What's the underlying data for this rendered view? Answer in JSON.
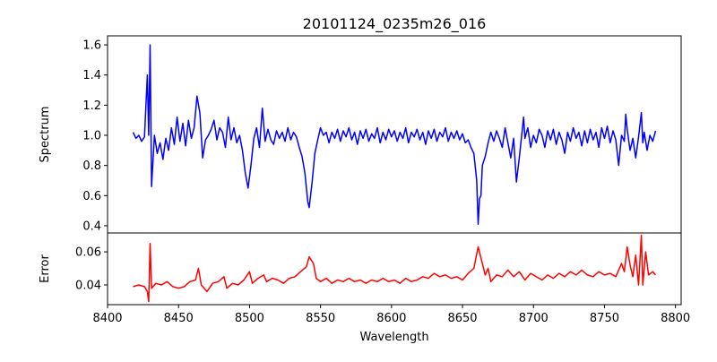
{
  "chart_data": {
    "type": "line",
    "title": "20101124_0235m26_016",
    "xlabel": "Wavelength",
    "xlim": [
      8400,
      8804
    ],
    "xticks": [
      8400,
      8450,
      8500,
      8550,
      8600,
      8650,
      8700,
      8750,
      8800
    ],
    "xtick_labels": [
      "8400",
      "8450",
      "8500",
      "8550",
      "8600",
      "8650",
      "8700",
      "8750",
      "8800"
    ],
    "panels": [
      {
        "name": "spectrum",
        "ylabel": "Spectrum",
        "ylim": [
          0.352,
          1.66
        ],
        "yticks": [
          0.4,
          0.6,
          0.8,
          1.0,
          1.2,
          1.4,
          1.6
        ],
        "ytick_labels": [
          "0.4",
          "0.6",
          "0.8",
          "1.0",
          "1.2",
          "1.4",
          "1.6"
        ],
        "color": "#0000ff",
        "points": [
          [
            8418,
            1.02
          ],
          [
            8420,
            0.98
          ],
          [
            8422,
            1.0
          ],
          [
            8424,
            0.96
          ],
          [
            8426,
            0.99
          ],
          [
            8428,
            1.4
          ],
          [
            8429,
            1.0
          ],
          [
            8430,
            1.6
          ],
          [
            8431,
            0.66
          ],
          [
            8433,
            1.0
          ],
          [
            8435,
            0.88
          ],
          [
            8437,
            0.95
          ],
          [
            8439,
            0.84
          ],
          [
            8441,
            0.98
          ],
          [
            8443,
            0.9
          ],
          [
            8445,
            1.05
          ],
          [
            8447,
            0.94
          ],
          [
            8449,
            1.12
          ],
          [
            8451,
            0.96
          ],
          [
            8453,
            1.08
          ],
          [
            8455,
            0.93
          ],
          [
            8457,
            1.1
          ],
          [
            8459,
            0.98
          ],
          [
            8461,
            1.05
          ],
          [
            8463,
            1.26
          ],
          [
            8465,
            1.15
          ],
          [
            8467,
            0.85
          ],
          [
            8469,
            0.97
          ],
          [
            8471,
            1.0
          ],
          [
            8473,
            1.04
          ],
          [
            8475,
            1.1
          ],
          [
            8477,
            0.97
          ],
          [
            8479,
            1.05
          ],
          [
            8481,
            1.02
          ],
          [
            8483,
            0.92
          ],
          [
            8485,
            1.12
          ],
          [
            8487,
            0.97
          ],
          [
            8489,
            1.05
          ],
          [
            8491,
            0.95
          ],
          [
            8493,
            1.0
          ],
          [
            8495,
            0.9
          ],
          [
            8497,
            0.75
          ],
          [
            8499,
            0.65
          ],
          [
            8501,
            0.8
          ],
          [
            8503,
            0.98
          ],
          [
            8505,
            1.05
          ],
          [
            8507,
            0.92
          ],
          [
            8509,
            1.18
          ],
          [
            8511,
            0.96
          ],
          [
            8513,
            1.04
          ],
          [
            8515,
            0.97
          ],
          [
            8517,
            0.94
          ],
          [
            8519,
            1.03
          ],
          [
            8521,
            0.98
          ],
          [
            8523,
            1.02
          ],
          [
            8525,
            0.96
          ],
          [
            8527,
            1.05
          ],
          [
            8529,
            0.97
          ],
          [
            8531,
            1.02
          ],
          [
            8533,
            0.99
          ],
          [
            8535,
            0.92
          ],
          [
            8537,
            0.86
          ],
          [
            8539,
            0.75
          ],
          [
            8541,
            0.56
          ],
          [
            8542,
            0.52
          ],
          [
            8544,
            0.68
          ],
          [
            8546,
            0.88
          ],
          [
            8548,
            0.97
          ],
          [
            8550,
            1.05
          ],
          [
            8552,
            1.0
          ],
          [
            8554,
            1.02
          ],
          [
            8556,
            0.95
          ],
          [
            8558,
            1.02
          ],
          [
            8560,
            0.98
          ],
          [
            8562,
            1.04
          ],
          [
            8564,
            0.96
          ],
          [
            8566,
            1.03
          ],
          [
            8568,
            0.99
          ],
          [
            8570,
            1.05
          ],
          [
            8572,
            0.97
          ],
          [
            8574,
            1.02
          ],
          [
            8576,
            0.94
          ],
          [
            8578,
            1.03
          ],
          [
            8580,
            0.98
          ],
          [
            8582,
            1.04
          ],
          [
            8584,
            0.96
          ],
          [
            8586,
            1.01
          ],
          [
            8588,
            0.98
          ],
          [
            8590,
            1.05
          ],
          [
            8592,
            0.95
          ],
          [
            8594,
            1.02
          ],
          [
            8596,
            0.97
          ],
          [
            8598,
            1.04
          ],
          [
            8600,
            0.99
          ],
          [
            8602,
            1.03
          ],
          [
            8604,
            0.96
          ],
          [
            8606,
            1.02
          ],
          [
            8608,
            0.98
          ],
          [
            8610,
            1.05
          ],
          [
            8612,
            0.95
          ],
          [
            8614,
            1.02
          ],
          [
            8616,
            0.99
          ],
          [
            8618,
            1.04
          ],
          [
            8620,
            0.97
          ],
          [
            8622,
            1.02
          ],
          [
            8624,
            0.94
          ],
          [
            8626,
            1.03
          ],
          [
            8628,
            0.98
          ],
          [
            8630,
            1.04
          ],
          [
            8632,
            0.96
          ],
          [
            8634,
            1.02
          ],
          [
            8636,
            0.99
          ],
          [
            8638,
            1.05
          ],
          [
            8640,
            0.96
          ],
          [
            8642,
            1.02
          ],
          [
            8644,
            0.98
          ],
          [
            8646,
            1.03
          ],
          [
            8648,
            0.97
          ],
          [
            8650,
            1.01
          ],
          [
            8652,
            0.95
          ],
          [
            8654,
            0.97
          ],
          [
            8656,
            0.92
          ],
          [
            8658,
            0.88
          ],
          [
            8660,
            0.7
          ],
          [
            8661,
            0.41
          ],
          [
            8662,
            0.58
          ],
          [
            8663,
            0.6
          ],
          [
            8664,
            0.8
          ],
          [
            8666,
            0.86
          ],
          [
            8668,
            0.95
          ],
          [
            8670,
            1.02
          ],
          [
            8672,
            0.96
          ],
          [
            8674,
            1.03
          ],
          [
            8676,
            0.98
          ],
          [
            8678,
            0.92
          ],
          [
            8680,
            1.05
          ],
          [
            8682,
            0.95
          ],
          [
            8684,
            0.85
          ],
          [
            8686,
            0.98
          ],
          [
            8688,
            0.69
          ],
          [
            8690,
            0.85
          ],
          [
            8692,
            1.03
          ],
          [
            8693,
            1.12
          ],
          [
            8694,
            0.98
          ],
          [
            8696,
            1.05
          ],
          [
            8698,
            0.92
          ],
          [
            8700,
            1.0
          ],
          [
            8702,
            0.95
          ],
          [
            8704,
            1.04
          ],
          [
            8706,
            1.0
          ],
          [
            8708,
            0.92
          ],
          [
            8710,
            1.03
          ],
          [
            8712,
            0.97
          ],
          [
            8714,
            1.04
          ],
          [
            8716,
            0.94
          ],
          [
            8718,
            1.02
          ],
          [
            8720,
            0.97
          ],
          [
            8722,
            0.88
          ],
          [
            8724,
            1.02
          ],
          [
            8726,
            0.96
          ],
          [
            8728,
            1.05
          ],
          [
            8730,
            0.98
          ],
          [
            8732,
            1.02
          ],
          [
            8734,
            0.93
          ],
          [
            8736,
            1.03
          ],
          [
            8738,
            0.95
          ],
          [
            8740,
            1.04
          ],
          [
            8742,
            0.97
          ],
          [
            8744,
            1.02
          ],
          [
            8746,
            0.92
          ],
          [
            8748,
            1.05
          ],
          [
            8750,
            0.98
          ],
          [
            8752,
            1.06
          ],
          [
            8754,
            0.95
          ],
          [
            8756,
            1.03
          ],
          [
            8758,
            0.97
          ],
          [
            8760,
            0.8
          ],
          [
            8762,
            1.0
          ],
          [
            8764,
            0.96
          ],
          [
            8765,
            1.14
          ],
          [
            8766,
            1.04
          ],
          [
            8768,
            0.9
          ],
          [
            8770,
            0.98
          ],
          [
            8772,
            0.85
          ],
          [
            8774,
            0.99
          ],
          [
            8776,
            1.15
          ],
          [
            8777,
            0.95
          ],
          [
            8778,
            1.02
          ],
          [
            8780,
            0.9
          ],
          [
            8782,
            1.0
          ],
          [
            8784,
            0.96
          ],
          [
            8786,
            1.03
          ]
        ]
      },
      {
        "name": "error",
        "ylabel": "Error",
        "ylim": [
          0.0281,
          0.0714
        ],
        "yticks": [
          0.04,
          0.06
        ],
        "ytick_labels": [
          "0.04",
          "0.06"
        ],
        "color": "#ff0000",
        "points": [
          [
            8418,
            0.039
          ],
          [
            8422,
            0.04
          ],
          [
            8426,
            0.039
          ],
          [
            8428,
            0.036
          ],
          [
            8429,
            0.03
          ],
          [
            8430,
            0.065
          ],
          [
            8431,
            0.038
          ],
          [
            8434,
            0.041
          ],
          [
            8438,
            0.04
          ],
          [
            8442,
            0.042
          ],
          [
            8446,
            0.039
          ],
          [
            8450,
            0.038
          ],
          [
            8454,
            0.039
          ],
          [
            8458,
            0.042
          ],
          [
            8462,
            0.043
          ],
          [
            8464,
            0.05
          ],
          [
            8466,
            0.04
          ],
          [
            8470,
            0.036
          ],
          [
            8474,
            0.041
          ],
          [
            8478,
            0.042
          ],
          [
            8482,
            0.045
          ],
          [
            8484,
            0.038
          ],
          [
            8488,
            0.041
          ],
          [
            8492,
            0.04
          ],
          [
            8496,
            0.043
          ],
          [
            8500,
            0.048
          ],
          [
            8502,
            0.041
          ],
          [
            8506,
            0.044
          ],
          [
            8510,
            0.046
          ],
          [
            8512,
            0.042
          ],
          [
            8516,
            0.044
          ],
          [
            8520,
            0.043
          ],
          [
            8524,
            0.041
          ],
          [
            8528,
            0.044
          ],
          [
            8532,
            0.045
          ],
          [
            8536,
            0.048
          ],
          [
            8540,
            0.051
          ],
          [
            8542,
            0.057
          ],
          [
            8545,
            0.053
          ],
          [
            8547,
            0.044
          ],
          [
            8550,
            0.042
          ],
          [
            8554,
            0.044
          ],
          [
            8558,
            0.041
          ],
          [
            8562,
            0.043
          ],
          [
            8566,
            0.042
          ],
          [
            8570,
            0.044
          ],
          [
            8574,
            0.042
          ],
          [
            8578,
            0.043
          ],
          [
            8582,
            0.041
          ],
          [
            8586,
            0.043
          ],
          [
            8590,
            0.042
          ],
          [
            8594,
            0.044
          ],
          [
            8598,
            0.042
          ],
          [
            8602,
            0.043
          ],
          [
            8606,
            0.041
          ],
          [
            8610,
            0.044
          ],
          [
            8614,
            0.042
          ],
          [
            8618,
            0.043
          ],
          [
            8622,
            0.045
          ],
          [
            8626,
            0.044
          ],
          [
            8630,
            0.047
          ],
          [
            8634,
            0.045
          ],
          [
            8638,
            0.046
          ],
          [
            8642,
            0.044
          ],
          [
            8646,
            0.045
          ],
          [
            8650,
            0.043
          ],
          [
            8654,
            0.047
          ],
          [
            8658,
            0.05
          ],
          [
            8661,
            0.063
          ],
          [
            8664,
            0.053
          ],
          [
            8666,
            0.046
          ],
          [
            8668,
            0.05
          ],
          [
            8670,
            0.042
          ],
          [
            8674,
            0.046
          ],
          [
            8678,
            0.045
          ],
          [
            8682,
            0.049
          ],
          [
            8686,
            0.045
          ],
          [
            8690,
            0.048
          ],
          [
            8694,
            0.043
          ],
          [
            8698,
            0.047
          ],
          [
            8702,
            0.045
          ],
          [
            8706,
            0.043
          ],
          [
            8710,
            0.046
          ],
          [
            8714,
            0.044
          ],
          [
            8718,
            0.047
          ],
          [
            8722,
            0.045
          ],
          [
            8726,
            0.048
          ],
          [
            8730,
            0.046
          ],
          [
            8734,
            0.049
          ],
          [
            8738,
            0.046
          ],
          [
            8742,
            0.045
          ],
          [
            8746,
            0.048
          ],
          [
            8750,
            0.046
          ],
          [
            8754,
            0.047
          ],
          [
            8758,
            0.045
          ],
          [
            8762,
            0.053
          ],
          [
            8764,
            0.048
          ],
          [
            8766,
            0.063
          ],
          [
            8768,
            0.052
          ],
          [
            8770,
            0.045
          ],
          [
            8772,
            0.058
          ],
          [
            8774,
            0.04
          ],
          [
            8776,
            0.07
          ],
          [
            8777,
            0.04
          ],
          [
            8779,
            0.06
          ],
          [
            8781,
            0.046
          ],
          [
            8784,
            0.048
          ],
          [
            8786,
            0.046
          ]
        ]
      }
    ]
  }
}
